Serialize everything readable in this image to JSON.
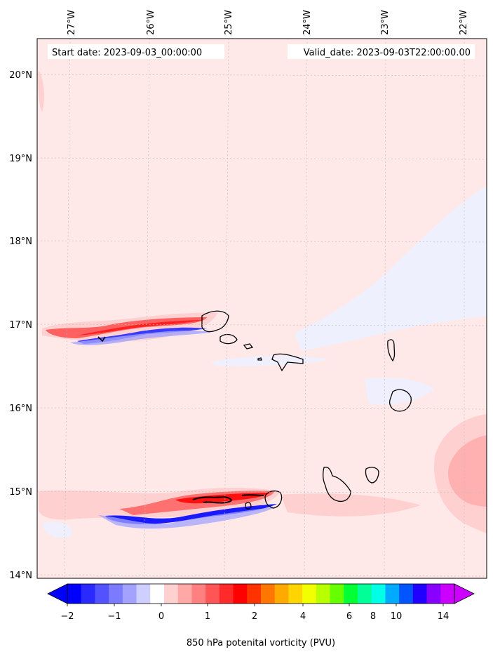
{
  "header": {
    "start_date": "Start date: 2023-09-03_00:00:00",
    "valid_date": "Valid_date: 2023-09-03T22:00:00.00"
  },
  "axes": {
    "lon_labels": [
      "27°W",
      "26°W",
      "25°W",
      "24°W",
      "23°W",
      "22°W"
    ],
    "lat_labels": [
      "20°N",
      "19°N",
      "18°N",
      "17°N",
      "16°N",
      "15°N",
      "14°N"
    ]
  },
  "colorbar": {
    "label": "850 hPa potenital vorticity (PVU)",
    "tick_labels": [
      "−2",
      "−1",
      "0",
      "1",
      "2",
      "4",
      "6",
      "8",
      "10",
      "14"
    ],
    "colors": [
      "#0000ff",
      "#2a2aff",
      "#5252ff",
      "#7b7bff",
      "#a3a3ff",
      "#cfcfff",
      "#ffffff",
      "#ffd0d0",
      "#ffa8a8",
      "#ff8080",
      "#ff5555",
      "#ff2b2b",
      "#ff0000",
      "#ff3300",
      "#ff7700",
      "#ffaa00",
      "#ffd400",
      "#f2ff00",
      "#b8ff00",
      "#66ff00",
      "#00ff33",
      "#00ff99",
      "#00ffe6",
      "#00aaff",
      "#0055ff",
      "#2200ff",
      "#8800ff",
      "#cc00ff"
    ]
  },
  "colors": {
    "background_field": "#ffe8e8",
    "weak_negative": "#eef0ff",
    "land_outline": "#000000"
  }
}
